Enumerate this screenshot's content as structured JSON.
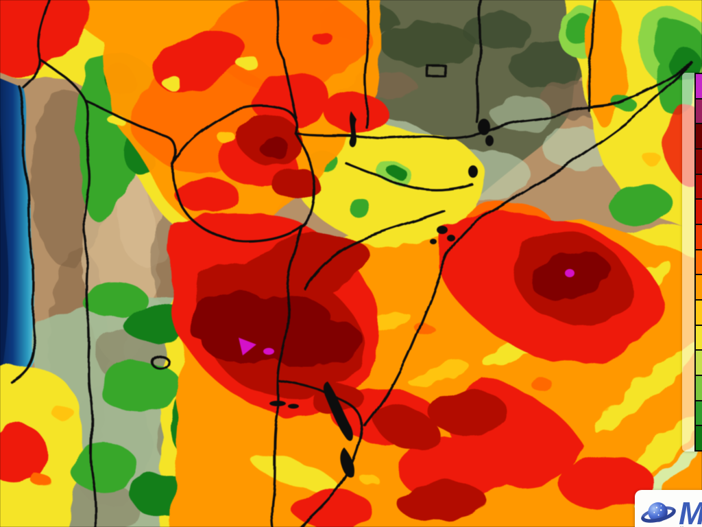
{
  "map": {
    "kind": "precipitation-accumulation-forecast-map",
    "area": "Southern Brazil, Uruguay, Paraguay, northern Argentina, Chile and adjacent South Atlantic"
  },
  "legend": {
    "orientation": "vertical",
    "note": "color scale bar, partially cut off at right edge",
    "cells_top_to_bottom": [
      "#c428c8",
      "#9c2060",
      "#6f0000",
      "#8c0400",
      "#b40a00",
      "#d81800",
      "#f03c00",
      "#ff6c00",
      "#ff9c00",
      "#ffc814",
      "#f2e42e",
      "#c4e04a",
      "#7cc83e",
      "#2f9e2c",
      "#0f7a16"
    ]
  },
  "logo": {
    "letter": "M",
    "sub_text": "M",
    "icon": "ringed-planet-with-stars",
    "card_background": "#fdfdfb",
    "letter_color": "#3b5cb8"
  },
  "palette": {
    "ocean_deep": "#071c4a",
    "ocean_mid": "#0e3a7c",
    "ocean_shelf": "#2c96bc",
    "ocean_coast": "#6fd2de",
    "terrain_tan": "#b5916a",
    "terrain_dark": "#7c5f43",
    "terrain_light": "#d7bd94",
    "terrain_olive": "#63684a",
    "terrain_forest": "#3c4a2e",
    "terrain_brown": "#79654c",
    "sage": "#a3bb97",
    "pale_sage": "#bccfad",
    "rain_yellow": "#f4e42e",
    "rain_gold": "#ffc414",
    "rain_palegreen": "#d9eca6",
    "rain_lightgreen": "#8fd44c",
    "rain_green": "#3aa62e",
    "rain_darkgreen": "#167d1c",
    "rain_orange": "#ff9800",
    "rain_deeporange": "#ff6a00",
    "rain_red": "#e81e0c",
    "rain_darkred": "#ad0d06",
    "rain_maroon": "#7c0202",
    "rain_magenta": "#cf13c3",
    "border_black": "#0d0d0d",
    "legend_panel": "rgba(255,255,255,0.52)"
  }
}
